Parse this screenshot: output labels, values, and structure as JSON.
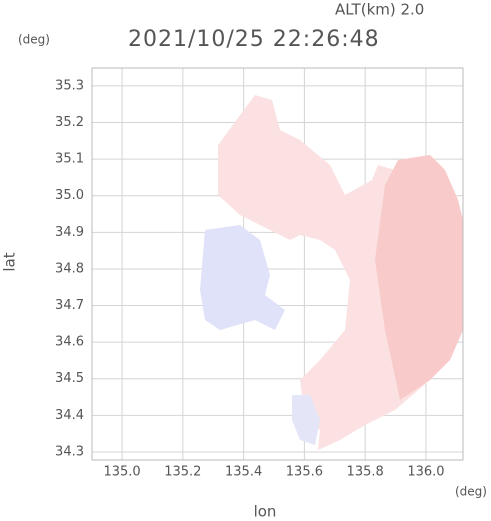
{
  "chart_data": {
    "type": "map",
    "altitude_label": "ALT(km) 2.0",
    "title": "2021/10/25 22:26:48",
    "ylabel": "lat",
    "xlabel": "lon",
    "y_unit": "(deg)",
    "x_unit": "(deg)",
    "xlim": [
      134.901,
      136.122
    ],
    "ylim": [
      34.278,
      35.349
    ],
    "xticks": [
      {
        "value": 135.0,
        "label": "135.0"
      },
      135.2,
      135.4,
      135.6,
      135.8,
      {
        "value": 136.0,
        "label": "136.0"
      }
    ],
    "yticks": [
      34.3,
      34.4,
      34.5,
      34.6,
      34.7,
      34.8,
      34.9,
      {
        "value": 35.0,
        "label": "35.0"
      },
      35.1,
      35.2,
      35.3
    ],
    "grid": true
  }
}
